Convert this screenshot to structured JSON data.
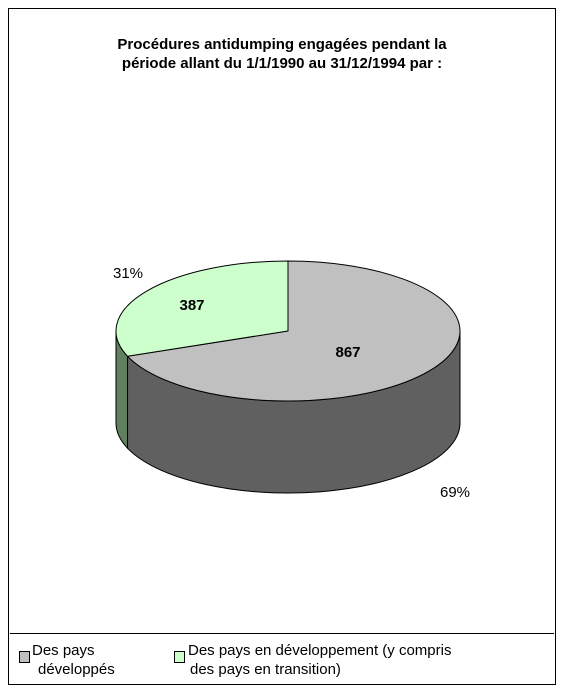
{
  "chart_data": {
    "type": "pie",
    "title_line1": "Procédures antidumping engagées pendant la",
    "title_line2": "période allant du 1/1/1990 au 31/12/1994 par :",
    "slices": [
      {
        "name": "Des pays développés",
        "legend_line1": "Des pays",
        "legend_line2": "développés",
        "value": 867,
        "percent_label": "69%",
        "color": "#c0c0c0",
        "side_color": "#606060"
      },
      {
        "name": "Des pays en développement (y compris des pays en transition)",
        "legend_line1": "Des pays en développement (y compris",
        "legend_line2": "des pays en transition)",
        "value": 387,
        "percent_label": "31%",
        "color": "#ccffcc",
        "side_color": "#608060"
      }
    ],
    "legend_placement": "bottom",
    "three_d": true
  }
}
